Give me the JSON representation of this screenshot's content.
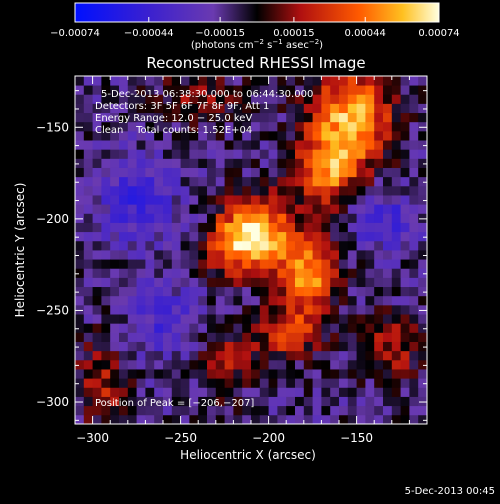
{
  "chart_data": {
    "type": "heatmap",
    "title": "Reconstructed RHESSI Image",
    "xlabel": "Heliocentric X (arcsec)",
    "ylabel": "Heliocentric Y (arcsec)",
    "xlim": [
      -310,
      -110
    ],
    "ylim": [
      -312,
      -122
    ],
    "x_ticks": [
      {
        "value": -300,
        "label": "−300"
      },
      {
        "value": -250,
        "label": "−250"
      },
      {
        "value": -200,
        "label": "−200"
      },
      {
        "value": -150,
        "label": "−150"
      }
    ],
    "y_ticks": [
      {
        "value": -150,
        "label": "−150"
      },
      {
        "value": -200,
        "label": "−200"
      },
      {
        "value": -250,
        "label": "−250"
      },
      {
        "value": -300,
        "label": "−300"
      }
    ],
    "colorbar": {
      "min": -0.00074,
      "max": 0.00074,
      "ticks": [
        {
          "value": -0.00074,
          "label": "−0.00074"
        },
        {
          "value": -0.00044,
          "label": "−0.00044"
        },
        {
          "value": -0.00015,
          "label": "−0.00015"
        },
        {
          "value": 0.00015,
          "label": "0.00015"
        },
        {
          "value": 0.00044,
          "label": "0.00044"
        },
        {
          "value": 0.00074,
          "label": "0.00074"
        }
      ],
      "units_prefix": "(photons cm",
      "units_exp1": "−2",
      "units_mid": " s",
      "units_exp2": "−1",
      "units_mid2": " asec",
      "units_exp3": "−2",
      "units_suffix": ")"
    },
    "annotations": {
      "time_range": "5-Dec-2013 06:38:30.000 to 06:44:30.000",
      "detectors": "Detectors: 3F 5F 6F 7F 8F 9F, Att 1",
      "energy": "Energy Range: 12.0 − 25.0 keV",
      "clean": "Clean    Total counts: 1.52E+04",
      "peak": "Position of Peak = [−206,−207]"
    },
    "peak": {
      "x": -206,
      "y": -207
    },
    "sources": [
      {
        "x": -153,
        "y": -145,
        "amp": 0.0007,
        "sx": 16,
        "sy": 20
      },
      {
        "x": -168,
        "y": -175,
        "amp": 0.0005,
        "sx": 12,
        "sy": 14
      },
      {
        "x": -206,
        "y": -207,
        "amp": 0.00074,
        "sx": 13,
        "sy": 13
      },
      {
        "x": -178,
        "y": -230,
        "amp": 0.00066,
        "sx": 12,
        "sy": 14
      },
      {
        "x": -222,
        "y": -215,
        "amp": 0.0004,
        "sx": 10,
        "sy": 12
      },
      {
        "x": -190,
        "y": -262,
        "amp": 0.00042,
        "sx": 14,
        "sy": 10
      },
      {
        "x": -295,
        "y": -290,
        "amp": 0.00032,
        "sx": 10,
        "sy": 16
      },
      {
        "x": -240,
        "y": -135,
        "amp": 0.00026,
        "sx": 16,
        "sy": 10
      },
      {
        "x": -130,
        "y": -270,
        "amp": 0.0003,
        "sx": 12,
        "sy": 12
      },
      {
        "x": -275,
        "y": -190,
        "amp": -0.0003,
        "sx": 16,
        "sy": 16
      },
      {
        "x": -135,
        "y": -200,
        "amp": -0.00028,
        "sx": 14,
        "sy": 12
      },
      {
        "x": -260,
        "y": -255,
        "amp": -0.00024,
        "sx": 14,
        "sy": 14
      },
      {
        "x": -225,
        "y": -280,
        "amp": 0.00028,
        "sx": 10,
        "sy": 12
      }
    ]
  },
  "footer": {
    "timestamp": "5-Dec-2013 00:45"
  }
}
